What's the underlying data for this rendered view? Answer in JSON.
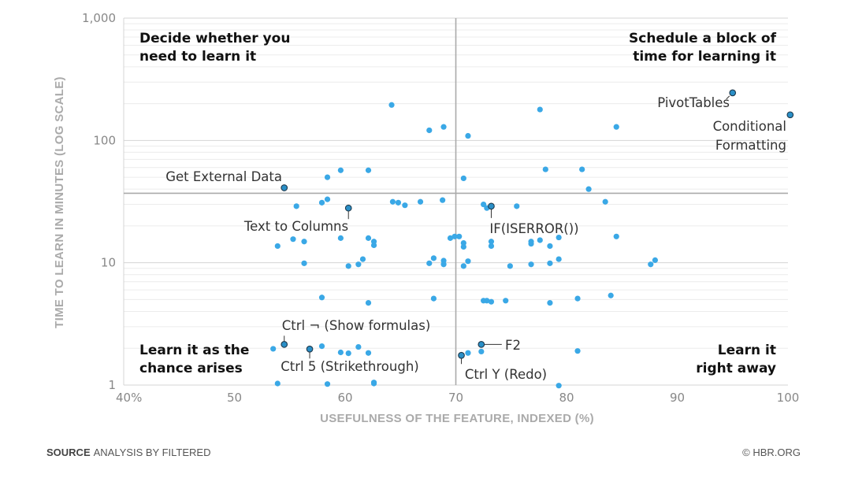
{
  "chart_data": {
    "type": "scatter",
    "xlabel": "USEFULNESS OF THE FEATURE, INDEXED (%)",
    "ylabel": "TIME TO LEARN IN MINUTES (LOG SCALE)",
    "xlim": [
      40,
      100
    ],
    "ylim": [
      1,
      1000
    ],
    "y_scale": "log",
    "x_ticks": [
      {
        "value": 40,
        "label": "40%"
      },
      {
        "value": 50,
        "label": "50"
      },
      {
        "value": 60,
        "label": "60"
      },
      {
        "value": 70,
        "label": "70"
      },
      {
        "value": 80,
        "label": "80"
      },
      {
        "value": 90,
        "label": "90"
      },
      {
        "value": 100,
        "label": "100"
      }
    ],
    "y_ticks": [
      {
        "value": 1,
        "label": "1"
      },
      {
        "value": 10,
        "label": "10"
      },
      {
        "value": 100,
        "label": "100"
      },
      {
        "value": 1000,
        "label": "1,000"
      }
    ],
    "dividers": {
      "x": 70,
      "y": 37
    },
    "quadrant_labels": [
      {
        "lines": [
          "Decide whether you",
          "need to learn it"
        ],
        "position": "top-left"
      },
      {
        "lines": [
          "Schedule a block of",
          "time for learning it"
        ],
        "position": "top-right"
      },
      {
        "lines": [
          "Learn it as the",
          "chance arises"
        ],
        "position": "bottom-left"
      },
      {
        "lines": [
          "Learn it",
          "right away"
        ],
        "position": "bottom-right"
      }
    ],
    "highlighted": [
      {
        "label": "PivotTables",
        "x": 95,
        "y": 245
      },
      {
        "label": "Conditional Formatting",
        "x": 100.2,
        "y": 162
      },
      {
        "label": "Get External Data",
        "x": 54.5,
        "y": 41
      },
      {
        "label": "Text to Columns",
        "x": 60.3,
        "y": 28
      },
      {
        "label": "IF(ISERROR())",
        "x": 73.2,
        "y": 29
      },
      {
        "label": "Ctrl ¬ (Show formulas)",
        "x": 54.5,
        "y": 2.15
      },
      {
        "label": "Ctrl 5 (Strikethrough)",
        "x": 56.8,
        "y": 1.97
      },
      {
        "label": "F2",
        "x": 72.3,
        "y": 2.15
      },
      {
        "label": "Ctrl Y (Redo)",
        "x": 70.5,
        "y": 1.75
      }
    ],
    "points": [
      [
        64.2,
        195
      ],
      [
        67.6,
        121
      ],
      [
        68.9,
        129
      ],
      [
        71.1,
        109
      ],
      [
        77.6,
        179
      ],
      [
        84.5,
        129
      ],
      [
        58.4,
        50
      ],
      [
        59.6,
        57
      ],
      [
        62.1,
        57
      ],
      [
        70.7,
        49
      ],
      [
        78.1,
        58
      ],
      [
        81.4,
        58
      ],
      [
        82.0,
        40
      ],
      [
        55.6,
        29
      ],
      [
        57.9,
        31
      ],
      [
        58.4,
        33
      ],
      [
        64.3,
        31.5
      ],
      [
        64.8,
        31
      ],
      [
        65.4,
        29.5
      ],
      [
        66.8,
        31.5
      ],
      [
        68.8,
        32.5
      ],
      [
        72.5,
        30
      ],
      [
        72.8,
        28
      ],
      [
        75.5,
        29
      ],
      [
        83.5,
        31.5
      ],
      [
        53.9,
        13.7
      ],
      [
        55.3,
        15.6
      ],
      [
        56.3,
        14.9
      ],
      [
        59.6,
        15.9
      ],
      [
        62.1,
        15.9
      ],
      [
        62.6,
        14.9
      ],
      [
        62.6,
        13.9
      ],
      [
        69.5,
        15.9
      ],
      [
        69.9,
        16.4
      ],
      [
        70.3,
        16.4
      ],
      [
        70.7,
        14.5
      ],
      [
        70.7,
        13.5
      ],
      [
        73.2,
        14.9
      ],
      [
        73.2,
        13.7
      ],
      [
        76.8,
        14.9
      ],
      [
        76.8,
        14.3
      ],
      [
        77.6,
        15.3
      ],
      [
        78.5,
        13.7
      ],
      [
        79.3,
        16.1
      ],
      [
        84.5,
        16.4
      ],
      [
        56.3,
        9.9
      ],
      [
        60.3,
        9.4
      ],
      [
        61.2,
        9.7
      ],
      [
        61.6,
        10.7
      ],
      [
        67.6,
        9.9
      ],
      [
        68.0,
        10.9
      ],
      [
        68.9,
        10.4
      ],
      [
        68.9,
        9.7
      ],
      [
        70.7,
        9.4
      ],
      [
        71.1,
        10.3
      ],
      [
        74.9,
        9.4
      ],
      [
        76.8,
        9.7
      ],
      [
        78.5,
        9.9
      ],
      [
        79.3,
        10.7
      ],
      [
        87.6,
        9.7
      ],
      [
        88.0,
        10.5
      ],
      [
        57.9,
        5.2
      ],
      [
        62.1,
        4.7
      ],
      [
        68.0,
        5.1
      ],
      [
        72.5,
        4.9
      ],
      [
        72.8,
        4.9
      ],
      [
        73.2,
        4.8
      ],
      [
        74.5,
        4.9
      ],
      [
        78.5,
        4.7
      ],
      [
        81.0,
        5.1
      ],
      [
        84.0,
        5.4
      ],
      [
        53.5,
        1.98
      ],
      [
        57.9,
        2.08
      ],
      [
        59.6,
        1.85
      ],
      [
        60.3,
        1.82
      ],
      [
        61.2,
        2.05
      ],
      [
        62.1,
        1.83
      ],
      [
        71.1,
        1.83
      ],
      [
        72.3,
        1.88
      ],
      [
        81.0,
        1.9
      ],
      [
        53.9,
        1.03
      ],
      [
        58.4,
        1.02
      ],
      [
        62.6,
        1.05
      ],
      [
        62.6,
        1.03
      ],
      [
        79.3,
        0.99
      ]
    ]
  },
  "footer": {
    "source_label": "SOURCE",
    "source_text": "ANALYSIS BY FILTERED",
    "copyright": "© HBR.ORG"
  }
}
